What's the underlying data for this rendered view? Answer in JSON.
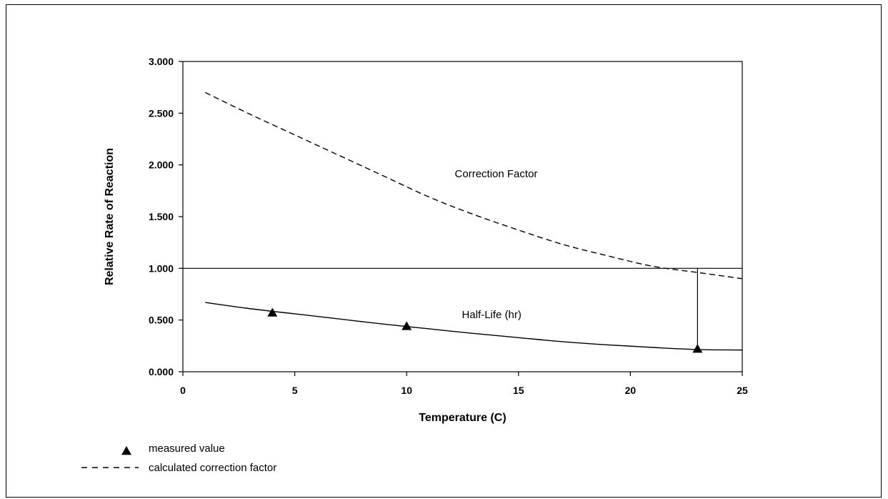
{
  "chart_data": {
    "type": "line",
    "title": "",
    "xlabel": "Temperature (C)",
    "ylabel": "Relative Rate of Reaction",
    "xlim": [
      0,
      25
    ],
    "ylim": [
      0,
      3
    ],
    "x_ticks": [
      0,
      5,
      10,
      15,
      20,
      25
    ],
    "x_tick_labels": [
      "0",
      "5",
      "10",
      "15",
      "20",
      "25"
    ],
    "y_ticks": [
      0,
      0.5,
      1,
      1.5,
      2,
      2.5,
      3
    ],
    "y_tick_labels": [
      "0.000",
      "0.500",
      "1.000",
      "1.500",
      "2.000",
      "2.500",
      "3.000"
    ],
    "grid": false,
    "reference_line": {
      "y": 1.0
    },
    "marker_line": {
      "x": 23,
      "y_from": 0.22,
      "y_to": 1.0
    },
    "series": [
      {
        "name": "calculated correction factor",
        "style": "dashed",
        "x": [
          1,
          3,
          5,
          7,
          9,
          11,
          13,
          15,
          17,
          19,
          21,
          23,
          25
        ],
        "y": [
          2.7,
          2.49,
          2.29,
          2.09,
          1.89,
          1.69,
          1.52,
          1.37,
          1.23,
          1.12,
          1.02,
          0.96,
          0.9
        ]
      },
      {
        "name": "Half-Life (hr)",
        "style": "solid",
        "x": [
          1,
          3,
          5,
          7,
          9,
          11,
          13,
          15,
          17,
          19,
          21,
          23,
          25
        ],
        "y": [
          0.67,
          0.61,
          0.56,
          0.51,
          0.46,
          0.415,
          0.37,
          0.33,
          0.29,
          0.26,
          0.235,
          0.215,
          0.21
        ]
      },
      {
        "name": "measured value",
        "style": "markers",
        "marker": "triangle",
        "x": [
          4,
          10,
          23
        ],
        "y": [
          0.57,
          0.44,
          0.22
        ]
      }
    ],
    "annotations": [
      {
        "text": "Correction Factor",
        "x": 14,
        "y": 1.88
      },
      {
        "text": "Half-Life (hr)",
        "x": 13.8,
        "y": 0.52
      }
    ],
    "legend": {
      "placement": "bottom-left",
      "entries": [
        {
          "symbol": "triangle",
          "label": "measured value"
        },
        {
          "symbol": "dashed-line",
          "label": "calculated correction factor"
        }
      ]
    }
  }
}
